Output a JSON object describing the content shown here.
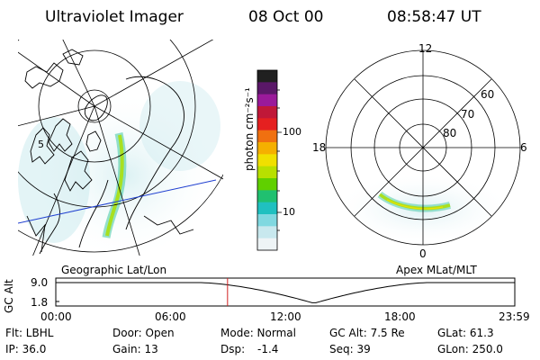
{
  "header": {
    "title": "Ultraviolet Imager",
    "date": "08 Oct 00",
    "time": "08:58:47 UT"
  },
  "geo_panel": {
    "label": "Geographic Lat/Lon",
    "meridian_label": "5"
  },
  "colorbar": {
    "unit_label": "photon cm⁻²s⁻¹",
    "ticks": [
      "100",
      "10"
    ],
    "colors": [
      "#202020",
      "#5a1868",
      "#9a1a9a",
      "#c01838",
      "#e52020",
      "#f07010",
      "#f5b000",
      "#f0e000",
      "#b8e000",
      "#60d000",
      "#20c070",
      "#20c0c0",
      "#80d8e0",
      "#c8e8ee",
      "#eef4f6"
    ]
  },
  "polar_panel": {
    "label": "Apex MLat/MLT",
    "mlt_labels": {
      "top": "12",
      "left": "18",
      "right": "6",
      "bottom": "0"
    },
    "lat_labels": [
      "60",
      "70",
      "80"
    ]
  },
  "timeline": {
    "ylabel": "GC Alt",
    "yticks": [
      "9.0",
      "1.8"
    ],
    "xticks": [
      "00:00",
      "06:00",
      "12:00",
      "18:00",
      "23:59"
    ],
    "current_time_hours": 8.98,
    "marker_color": "#d02020"
  },
  "info": {
    "flt": "Flt: LBHL",
    "door": "Door: Open",
    "mode": "Mode: Normal",
    "gc_alt": "GC Alt: 7.5 Re",
    "glat": "GLat:  61.3",
    "ip": "IP: 36.0",
    "gain": "Gain: 13",
    "dsp_label": "Dsp:",
    "dsp_value": "-1.4",
    "seq": "Seq: 39",
    "glon": "GLon: 250.0"
  }
}
